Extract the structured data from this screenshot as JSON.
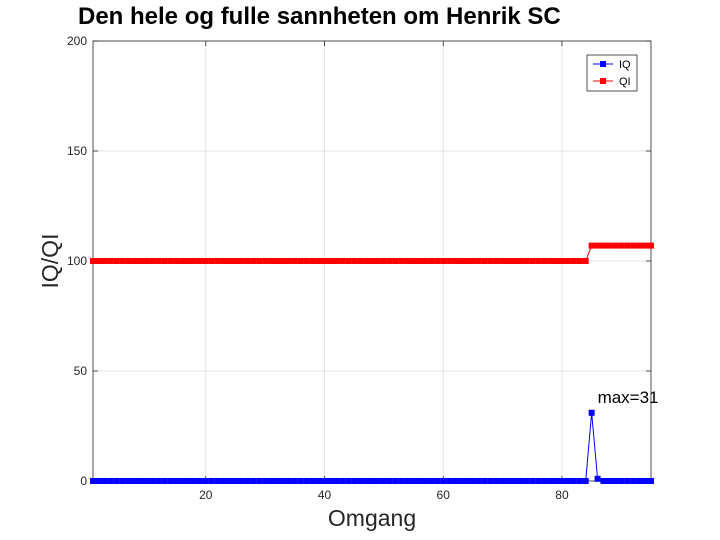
{
  "chart_data": {
    "type": "line",
    "title": "Den hele og fulle sannheten om Henrik SC",
    "xlabel": "Omgang",
    "ylabel": "IQ/QI",
    "xlim": [
      1,
      95
    ],
    "ylim": [
      0,
      200
    ],
    "xticks": [
      20,
      40,
      60,
      80
    ],
    "yticks": [
      0,
      50,
      100,
      150,
      200
    ],
    "grid": true,
    "legend_position": "top-right",
    "series": [
      {
        "name": "IQ",
        "color": "#0000ff",
        "marker": "square",
        "x_start": 1,
        "values": [
          0,
          0,
          0,
          0,
          0,
          0,
          0,
          0,
          0,
          0,
          0,
          0,
          0,
          0,
          0,
          0,
          0,
          0,
          0,
          0,
          0,
          0,
          0,
          0,
          0,
          0,
          0,
          0,
          0,
          0,
          0,
          0,
          0,
          0,
          0,
          0,
          0,
          0,
          0,
          0,
          0,
          0,
          0,
          0,
          0,
          0,
          0,
          0,
          0,
          0,
          0,
          0,
          0,
          0,
          0,
          0,
          0,
          0,
          0,
          0,
          0,
          0,
          0,
          0,
          0,
          0,
          0,
          0,
          0,
          0,
          0,
          0,
          0,
          0,
          0,
          0,
          0,
          0,
          0,
          0,
          0,
          0,
          0,
          0,
          31,
          1,
          0,
          0,
          0,
          0,
          0,
          0,
          0,
          0,
          0
        ]
      },
      {
        "name": "QI",
        "color": "#ff0000",
        "marker": "square",
        "x_start": 1,
        "values": [
          100,
          100,
          100,
          100,
          100,
          100,
          100,
          100,
          100,
          100,
          100,
          100,
          100,
          100,
          100,
          100,
          100,
          100,
          100,
          100,
          100,
          100,
          100,
          100,
          100,
          100,
          100,
          100,
          100,
          100,
          100,
          100,
          100,
          100,
          100,
          100,
          100,
          100,
          100,
          100,
          100,
          100,
          100,
          100,
          100,
          100,
          100,
          100,
          100,
          100,
          100,
          100,
          100,
          100,
          100,
          100,
          100,
          100,
          100,
          100,
          100,
          100,
          100,
          100,
          100,
          100,
          100,
          100,
          100,
          100,
          100,
          100,
          100,
          100,
          100,
          100,
          100,
          100,
          100,
          100,
          100,
          100,
          100,
          100,
          107,
          107,
          107,
          107,
          107,
          107,
          107,
          107,
          107,
          107,
          107
        ]
      }
    ],
    "annotations": [
      {
        "text": "max=31",
        "x": 86,
        "y": 35.5
      }
    ]
  }
}
